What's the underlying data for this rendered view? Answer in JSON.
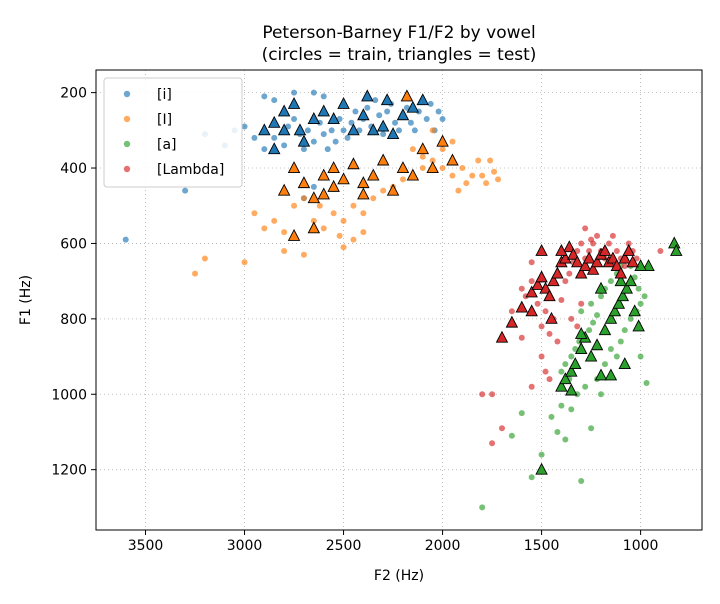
{
  "chart_data": {
    "type": "scatter",
    "title": "Peterson-Barney F1/F2 by vowel\n(circles = train, triangles = test)",
    "title_lines": [
      "Peterson-Barney F1/F2 by vowel",
      "(circles = train, triangles = test)"
    ],
    "xlabel": "F2 (Hz)",
    "ylabel": "F1 (Hz)",
    "xlim": [
      3750,
      690
    ],
    "ylim": [
      1360,
      140
    ],
    "x_reversed": true,
    "y_reversed": true,
    "xticks": [
      3500,
      3000,
      2500,
      2000,
      1500,
      1000
    ],
    "yticks": [
      200,
      400,
      600,
      800,
      1000,
      1200
    ],
    "grid": true,
    "legend": "top-left",
    "series": [
      {
        "name": "[i]",
        "color": "#1f77b4",
        "train": [
          [
            3600,
            590
          ],
          [
            3300,
            460
          ],
          [
            3200,
            310
          ],
          [
            3100,
            340
          ],
          [
            3050,
            300
          ],
          [
            3000,
            290
          ],
          [
            2950,
            320
          ],
          [
            2900,
            350
          ],
          [
            2850,
            320
          ],
          [
            2800,
            340
          ],
          [
            2780,
            290
          ],
          [
            2750,
            270
          ],
          [
            2720,
            310
          ],
          [
            2700,
            350
          ],
          [
            2680,
            300
          ],
          [
            2650,
            330
          ],
          [
            2620,
            280
          ],
          [
            2600,
            310
          ],
          [
            2580,
            350
          ],
          [
            2560,
            300
          ],
          [
            2540,
            330
          ],
          [
            2520,
            270
          ],
          [
            2500,
            300
          ],
          [
            2480,
            320
          ],
          [
            2460,
            280
          ],
          [
            2440,
            250
          ],
          [
            2420,
            300
          ],
          [
            2400,
            270
          ],
          [
            2380,
            240
          ],
          [
            2360,
            290
          ],
          [
            2340,
            220
          ],
          [
            2320,
            260
          ],
          [
            2300,
            310
          ],
          [
            2280,
            250
          ],
          [
            2260,
            230
          ],
          [
            2240,
            280
          ],
          [
            2220,
            300
          ],
          [
            2200,
            260
          ],
          [
            2180,
            240
          ],
          [
            2160,
            280
          ],
          [
            2140,
            300
          ],
          [
            2120,
            250
          ],
          [
            2100,
            220
          ],
          [
            2080,
            270
          ],
          [
            2060,
            230
          ],
          [
            2040,
            300
          ],
          [
            2020,
            250
          ],
          [
            2000,
            270
          ],
          [
            2700,
            480
          ],
          [
            2650,
            450
          ],
          [
            2750,
            200
          ],
          [
            2650,
            200
          ],
          [
            2600,
            210
          ],
          [
            2900,
            210
          ],
          [
            2850,
            220
          ]
        ],
        "test": [
          [
            2900,
            300
          ],
          [
            2850,
            280
          ],
          [
            2800,
            250
          ],
          [
            2750,
            230
          ],
          [
            2720,
            300
          ],
          [
            2700,
            330
          ],
          [
            2650,
            270
          ],
          [
            2600,
            250
          ],
          [
            2550,
            270
          ],
          [
            2500,
            230
          ],
          [
            2450,
            300
          ],
          [
            2400,
            260
          ],
          [
            2380,
            210
          ],
          [
            2350,
            300
          ],
          [
            2300,
            290
          ],
          [
            2280,
            220
          ],
          [
            2250,
            310
          ],
          [
            2200,
            260
          ],
          [
            2150,
            240
          ],
          [
            2100,
            220
          ],
          [
            2850,
            350
          ],
          [
            2800,
            300
          ]
        ]
      },
      {
        "name": "[I]",
        "color": "#ff7f0e",
        "train": [
          [
            3250,
            680
          ],
          [
            3200,
            640
          ],
          [
            3000,
            650
          ],
          [
            2950,
            520
          ],
          [
            2900,
            560
          ],
          [
            2850,
            540
          ],
          [
            2800,
            570
          ],
          [
            2750,
            500
          ],
          [
            2700,
            480
          ],
          [
            2650,
            540
          ],
          [
            2620,
            500
          ],
          [
            2600,
            560
          ],
          [
            2550,
            520
          ],
          [
            2520,
            580
          ],
          [
            2500,
            540
          ],
          [
            2450,
            500
          ],
          [
            2400,
            520
          ],
          [
            2350,
            480
          ],
          [
            2300,
            460
          ],
          [
            2250,
            450
          ],
          [
            2200,
            430
          ],
          [
            2150,
            420
          ],
          [
            2100,
            400
          ],
          [
            2050,
            380
          ],
          [
            2000,
            400
          ],
          [
            1950,
            420
          ],
          [
            1920,
            460
          ],
          [
            1900,
            400
          ],
          [
            1880,
            440
          ],
          [
            1850,
            420
          ],
          [
            1820,
            380
          ],
          [
            1800,
            420
          ],
          [
            1780,
            440
          ],
          [
            1760,
            380
          ],
          [
            1740,
            410
          ],
          [
            1720,
            430
          ],
          [
            2500,
            610
          ],
          [
            2450,
            590
          ],
          [
            2400,
            570
          ],
          [
            2050,
            300
          ],
          [
            2000,
            350
          ],
          [
            1950,
            330
          ],
          [
            2100,
            370
          ],
          [
            2150,
            350
          ],
          [
            2800,
            620
          ],
          [
            2700,
            630
          ]
        ],
        "test": [
          [
            2750,
            580
          ],
          [
            2650,
            560
          ],
          [
            2600,
            470
          ],
          [
            2550,
            400
          ],
          [
            2500,
            430
          ],
          [
            2450,
            390
          ],
          [
            2400,
            440
          ],
          [
            2350,
            420
          ],
          [
            2300,
            380
          ],
          [
            2250,
            460
          ],
          [
            2200,
            400
          ],
          [
            2150,
            420
          ],
          [
            2100,
            350
          ],
          [
            2050,
            400
          ],
          [
            2000,
            330
          ],
          [
            1950,
            380
          ],
          [
            2700,
            440
          ],
          [
            2650,
            480
          ],
          [
            2600,
            420
          ],
          [
            2550,
            450
          ],
          [
            2800,
            460
          ],
          [
            2750,
            400
          ],
          [
            2180,
            210
          ],
          [
            2400,
            470
          ]
        ]
      },
      {
        "name": "[a]",
        "color": "#2ca02c",
        "train": [
          [
            1800,
            1300
          ],
          [
            1650,
            1110
          ],
          [
            1600,
            1050
          ],
          [
            1550,
            1220
          ],
          [
            1500,
            1160
          ],
          [
            1450,
            1060
          ],
          [
            1420,
            1100
          ],
          [
            1400,
            1030
          ],
          [
            1380,
            1120
          ],
          [
            1350,
            1040
          ],
          [
            1320,
            1000
          ],
          [
            1300,
            1230
          ],
          [
            1280,
            980
          ],
          [
            1250,
            1090
          ],
          [
            1220,
            960
          ],
          [
            1200,
            1000
          ],
          [
            1180,
            920
          ],
          [
            1150,
            880
          ],
          [
            1120,
            900
          ],
          [
            1100,
            860
          ],
          [
            1080,
            830
          ],
          [
            1050,
            800
          ],
          [
            1020,
            780
          ],
          [
            1000,
            760
          ],
          [
            980,
            740
          ],
          [
            1300,
            780
          ],
          [
            1250,
            760
          ],
          [
            1200,
            740
          ],
          [
            1180,
            720
          ],
          [
            1150,
            700
          ],
          [
            1120,
            680
          ],
          [
            1100,
            660
          ],
          [
            1080,
            640
          ],
          [
            1050,
            660
          ],
          [
            1030,
            690
          ],
          [
            1010,
            720
          ],
          [
            1280,
            850
          ],
          [
            1260,
            830
          ],
          [
            1240,
            810
          ],
          [
            1220,
            790
          ],
          [
            1350,
            900
          ],
          [
            1330,
            880
          ],
          [
            1310,
            860
          ],
          [
            1400,
            940
          ],
          [
            1380,
            920
          ],
          [
            1360,
            960
          ],
          [
            970,
            970
          ],
          [
            1000,
            900
          ]
        ],
        "test": [
          [
            1500,
            1200
          ],
          [
            1400,
            980
          ],
          [
            1380,
            960
          ],
          [
            1350,
            940
          ],
          [
            1330,
            920
          ],
          [
            1300,
            880
          ],
          [
            1280,
            850
          ],
          [
            1250,
            900
          ],
          [
            1220,
            870
          ],
          [
            1200,
            950
          ],
          [
            1180,
            830
          ],
          [
            1150,
            800
          ],
          [
            1130,
            780
          ],
          [
            1110,
            760
          ],
          [
            1090,
            740
          ],
          [
            1070,
            720
          ],
          [
            1050,
            700
          ],
          [
            1030,
            780
          ],
          [
            1010,
            820
          ],
          [
            1100,
            700
          ],
          [
            1300,
            840
          ],
          [
            1350,
            990
          ],
          [
            1080,
            920
          ],
          [
            1200,
            720
          ],
          [
            830,
            600
          ],
          [
            820,
            620
          ],
          [
            960,
            660
          ],
          [
            1000,
            660
          ],
          [
            1150,
            950
          ]
        ]
      },
      {
        "name": "[Lambda]",
        "color": "#d62728",
        "train": [
          [
            1800,
            1000
          ],
          [
            1750,
            1000
          ],
          [
            1750,
            1130
          ],
          [
            1700,
            1090
          ],
          [
            1650,
            780
          ],
          [
            1600,
            720
          ],
          [
            1580,
            740
          ],
          [
            1550,
            700
          ],
          [
            1520,
            760
          ],
          [
            1500,
            820
          ],
          [
            1480,
            780
          ],
          [
            1460,
            840
          ],
          [
            1440,
            800
          ],
          [
            1420,
            860
          ],
          [
            1400,
            750
          ],
          [
            1380,
            700
          ],
          [
            1360,
            680
          ],
          [
            1340,
            650
          ],
          [
            1320,
            620
          ],
          [
            1300,
            600
          ],
          [
            1280,
            640
          ],
          [
            1260,
            620
          ],
          [
            1240,
            600
          ],
          [
            1220,
            580
          ],
          [
            1200,
            620
          ],
          [
            1180,
            640
          ],
          [
            1160,
            600
          ],
          [
            1140,
            580
          ],
          [
            1120,
            620
          ],
          [
            1100,
            640
          ],
          [
            1080,
            660
          ],
          [
            1060,
            600
          ],
          [
            1040,
            620
          ],
          [
            1020,
            640
          ],
          [
            1500,
            900
          ],
          [
            1480,
            940
          ],
          [
            1460,
            960
          ],
          [
            1550,
            980
          ],
          [
            1600,
            850
          ],
          [
            1350,
            800
          ],
          [
            1320,
            820
          ],
          [
            1300,
            760
          ],
          [
            900,
            620
          ],
          [
            1280,
            560
          ],
          [
            1250,
            590
          ],
          [
            1550,
            650
          ]
        ],
        "test": [
          [
            1700,
            850
          ],
          [
            1650,
            810
          ],
          [
            1600,
            770
          ],
          [
            1550,
            730
          ],
          [
            1520,
            710
          ],
          [
            1500,
            690
          ],
          [
            1480,
            720
          ],
          [
            1460,
            740
          ],
          [
            1440,
            700
          ],
          [
            1420,
            680
          ],
          [
            1400,
            650
          ],
          [
            1380,
            640
          ],
          [
            1360,
            610
          ],
          [
            1340,
            630
          ],
          [
            1320,
            650
          ],
          [
            1300,
            680
          ],
          [
            1280,
            660
          ],
          [
            1260,
            640
          ],
          [
            1240,
            670
          ],
          [
            1220,
            650
          ],
          [
            1200,
            630
          ],
          [
            1180,
            620
          ],
          [
            1160,
            650
          ],
          [
            1140,
            640
          ],
          [
            1120,
            660
          ],
          [
            1100,
            680
          ],
          [
            1080,
            640
          ],
          [
            1060,
            620
          ],
          [
            1040,
            650
          ],
          [
            1500,
            620
          ],
          [
            1400,
            620
          ],
          [
            1550,
            780
          ],
          [
            1450,
            800
          ]
        ]
      }
    ]
  }
}
